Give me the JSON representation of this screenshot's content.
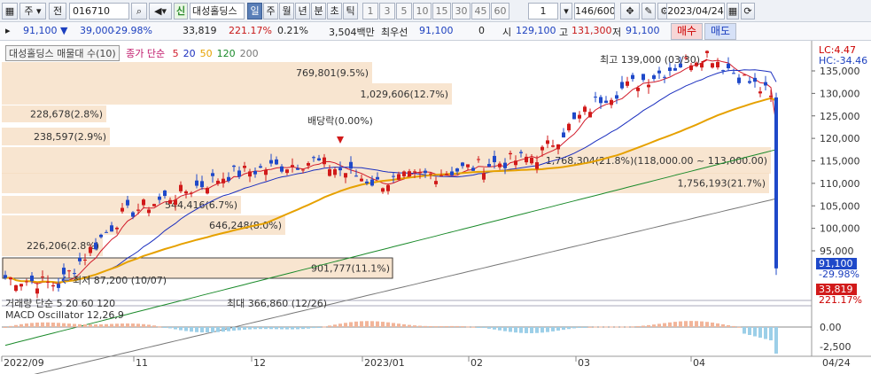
{
  "toolbar": {
    "code": "016710",
    "jeon_label": "전",
    "ju_label": "주",
    "sin_label": "신",
    "name": "대성홀딩스",
    "periods": [
      "일",
      "주",
      "월",
      "년",
      "분",
      "초",
      "틱"
    ],
    "minutes": [
      "1",
      "3",
      "5",
      "10",
      "15",
      "30",
      "45",
      "60"
    ],
    "count_value": "1",
    "bar_count": "146/600",
    "date": "2023/04/24"
  },
  "quote": {
    "price": "91,100",
    "change": "39,000",
    "change_pct": "-29.98%",
    "volume": "33,819",
    "vol_ratio": "221.17%",
    "turnover": "0.21%",
    "amount": "3,504백만",
    "best_ask_label": "최우선",
    "best_ask": "91,100",
    "best_bid": "0",
    "open_label": "시",
    "open": "129,100",
    "high_label": "고",
    "high": "131,300",
    "low_label": "저",
    "low": "91,100",
    "buy_label": "매수",
    "sell_label": "매도"
  },
  "legend": {
    "sell_label": "대성홀딩스 매물대 수(10)",
    "ma_label": "종가 단순",
    "ma_periods": [
      "5",
      "20",
      "50",
      "120",
      "200"
    ],
    "ma_colors": [
      "#d11a2a",
      "#1b2fbf",
      "#e6a100",
      "#1a8a2a",
      "#777777"
    ]
  },
  "volume_legend": {
    "label": "거래량 단순",
    "periods": [
      "5",
      "20",
      "60",
      "120"
    ]
  },
  "macd": {
    "label": "MACD Oscillator 12,26,9",
    "ticks": [
      "0.00",
      "-2,500"
    ]
  },
  "annotations": {
    "high": "최고 139,000 (03/30)",
    "low": "최저 87,200 (10/07)",
    "dividend": "배당락(0.00%)",
    "vol_max": "최대 366,860 (12/26)",
    "lc": "LC:4.47",
    "hc": "HC:-34.46"
  },
  "volume_profile": [
    {
      "label": "769,801(9.5%)"
    },
    {
      "label": "1,029,606(12.7%)"
    },
    {
      "label": "228,678(2.8%)"
    },
    {
      "label": "238,597(2.9%)"
    },
    {
      "label": "1,768,304(21.8%)(118,000.00 ~ 113,000.00)"
    },
    {
      "label": "1,756,193(21.7%)"
    },
    {
      "label": "544,416(6.7%)"
    },
    {
      "label": "646,248(8.0%)"
    },
    {
      "label": "226,206(2.8%)"
    },
    {
      "label": "901,777(11.1%)"
    }
  ],
  "y_ticks": [
    "135,000",
    "130,000",
    "125,000",
    "120,000",
    "115,000",
    "110,000",
    "105,000",
    "100,000",
    "95,000"
  ],
  "price_boxes": {
    "last": "91,100",
    "last_pct": "-29.98%",
    "volume": "33,819",
    "volume_pct": "221.17%"
  },
  "x_ticks": [
    "2022/09",
    "11",
    "12",
    "2023/01",
    "02",
    "03",
    "04",
    "04/24"
  ],
  "chart_data": {
    "type": "line",
    "title": "",
    "ylabel": "",
    "ylim": [
      87000,
      142000
    ],
    "x": [
      "2022-09-23",
      "2022-10-07",
      "2022-11-01",
      "2022-12-01",
      "2022-12-26",
      "2023-01-02",
      "2023-02-01",
      "2023-03-02",
      "2023-03-30",
      "2023-04-03",
      "2023-04-21",
      "2023-04-24"
    ],
    "series": [
      {
        "values": [
          89000,
          87200,
          102000,
          113000,
          110000,
          112000,
          116000,
          130000,
          139000,
          134000,
          130000,
          91100
        ]
      }
    ]
  }
}
